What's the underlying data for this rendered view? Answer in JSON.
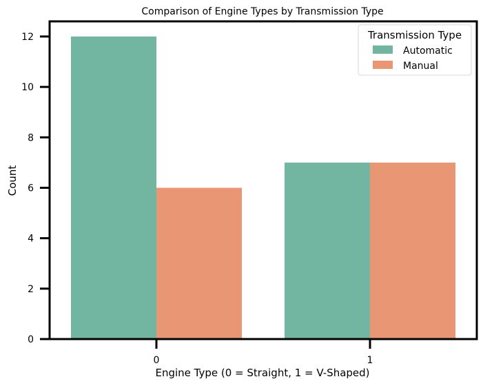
{
  "chart_data": {
    "type": "bar",
    "title": "Comparison of Engine Types by Transmission Type",
    "xlabel": "Engine Type (0 = Straight, 1 = V-Shaped)",
    "ylabel": "Count",
    "categories": [
      "0",
      "1"
    ],
    "series": [
      {
        "name": "Automatic",
        "values": [
          12,
          7
        ],
        "color": "#72b6a1"
      },
      {
        "name": "Manual",
        "values": [
          6,
          7
        ],
        "color": "#e99675"
      }
    ],
    "ylim": [
      0,
      12.6
    ],
    "yticks": [
      0,
      2,
      4,
      6,
      8,
      10,
      12
    ],
    "grid": false,
    "legend": {
      "title": "Transmission Type",
      "placement": "top-right"
    }
  }
}
